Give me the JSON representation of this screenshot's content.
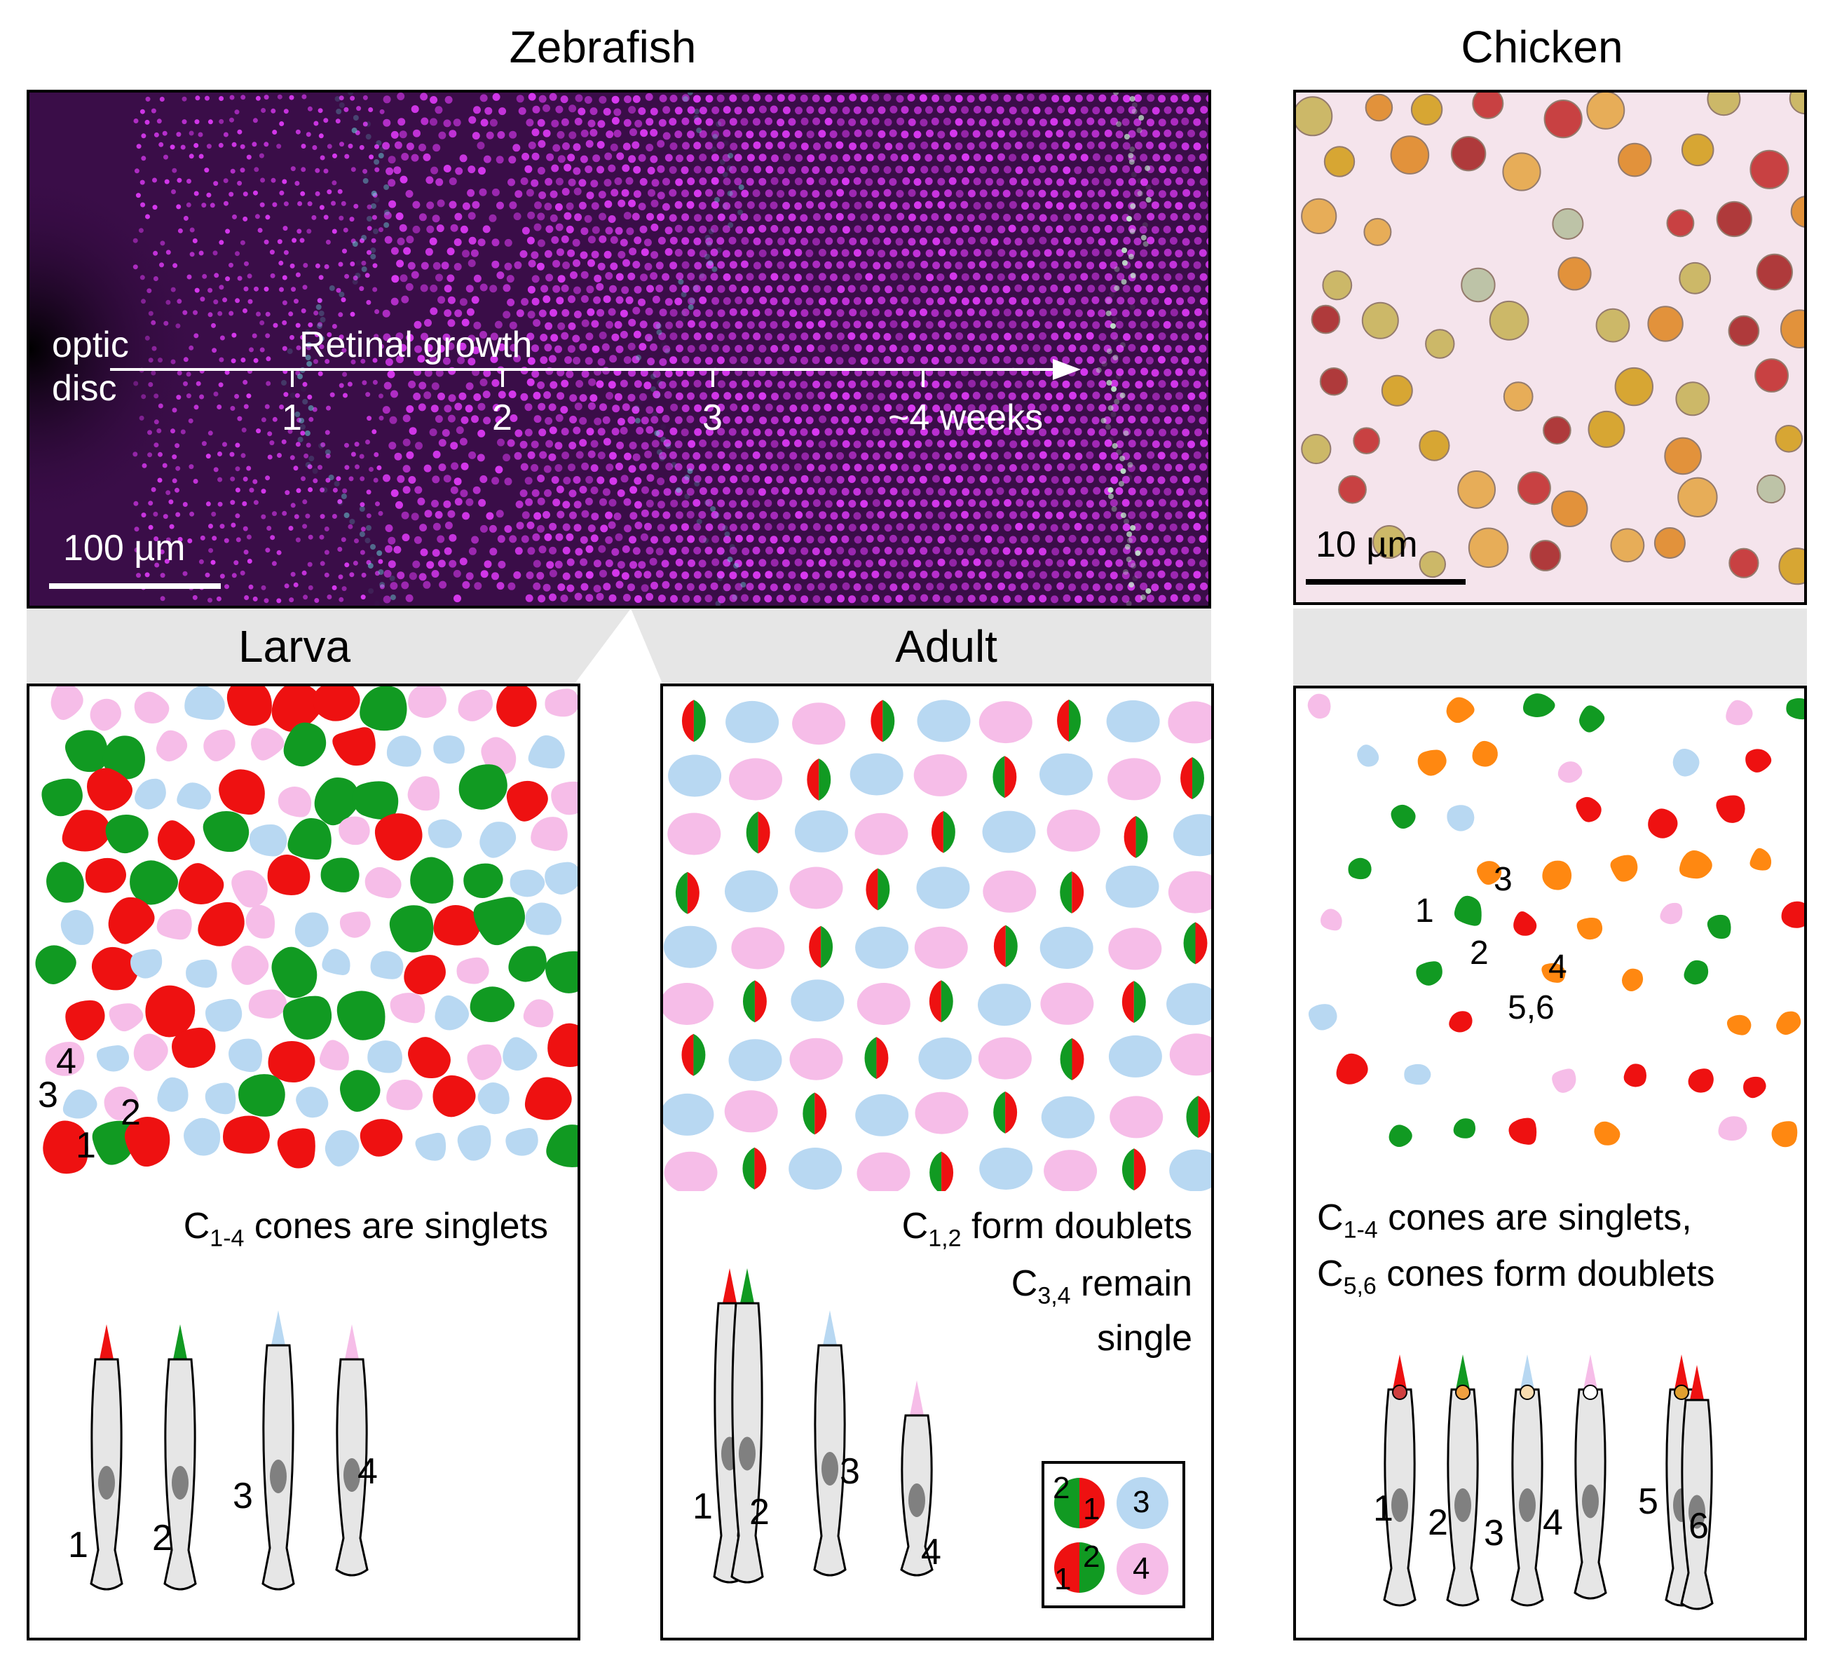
{
  "titles": {
    "zebrafish": "Zebrafish",
    "chicken": "Chicken",
    "larva": "Larva",
    "adult": "Adult"
  },
  "zebrafish_micro": {
    "optic_disc_1": "optic",
    "optic_disc_2": "disc",
    "growth_label": "Retinal growth",
    "ticks": [
      "1",
      "2",
      "3",
      "~4 weeks"
    ],
    "scale": "100 µm"
  },
  "chicken_micro": {
    "scale": "10 µm"
  },
  "larva": {
    "caption_main": "C",
    "caption_sub": "1-4",
    "caption_rest": " cones are singlets",
    "mosaic_labels": [
      "4",
      "3",
      "2",
      "1"
    ],
    "cell_labels": [
      "1",
      "2",
      "3",
      "4"
    ]
  },
  "adult": {
    "line1_main": "C",
    "line1_sub": "1,2",
    "line1_rest": " form doublets",
    "line2_main": "C",
    "line2_sub": "3,4",
    "line2_rest": " remain",
    "line3": "single",
    "cell_labels": [
      "1",
      "2",
      "3",
      "4"
    ],
    "legend_labels": [
      "2",
      "1",
      "3",
      "1",
      "2",
      "4"
    ]
  },
  "chicken": {
    "line1_main": "C",
    "line1_sub": "1-4",
    "line1_rest": " cones are singlets,",
    "line2_main": "C",
    "line2_sub": "5,6",
    "line2_rest": " cones form doublets",
    "mosaic_labels": [
      "3",
      "1",
      "2",
      "4",
      "5,6"
    ],
    "cell_labels": [
      "1",
      "2",
      "3",
      "4",
      "5",
      "6"
    ]
  },
  "colors": {
    "red": "#ee1111",
    "green": "#119a22",
    "blue": "#b8d8f2",
    "pink": "#f6bde8",
    "orange": "#ff8811",
    "magenta": "#d838f0",
    "cyan": "#6ad0d8",
    "cell_gray": "#e6e6e6",
    "nucleus": "#808080"
  }
}
